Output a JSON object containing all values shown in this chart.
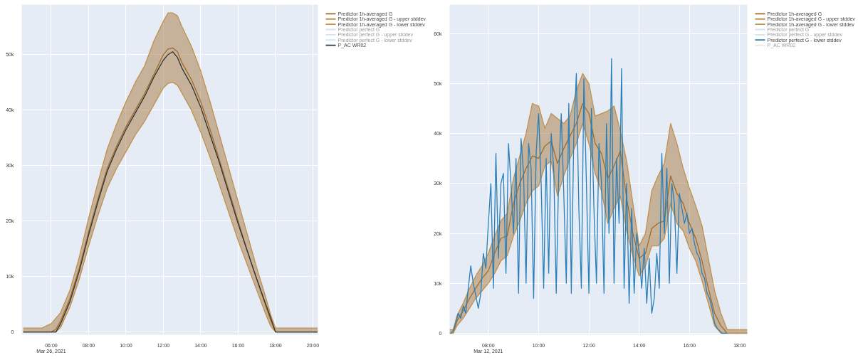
{
  "chart_data": [
    {
      "type": "line",
      "legend": "right",
      "grid": true,
      "ylim": [
        -500,
        59000
      ],
      "xlim": [
        4.42,
        20.27
      ],
      "yticks": [
        0,
        {
          "value": 10000,
          "label": "10k"
        },
        {
          "value": 20000,
          "label": "20k"
        },
        {
          "value": 30000,
          "label": "30k"
        },
        {
          "value": 40000,
          "label": "40k"
        },
        {
          "value": 50000,
          "label": "50k"
        }
      ],
      "xticks": [
        {
          "value": 6,
          "label": "06:00\nMar 26, 2021"
        },
        {
          "value": 8,
          "label": "08:00"
        },
        {
          "value": 10,
          "label": "10:00"
        },
        {
          "value": 12,
          "label": "12:00"
        },
        {
          "value": 14,
          "label": "14:00"
        },
        {
          "value": 16,
          "label": "16:00"
        },
        {
          "value": 18,
          "label": "18:00"
        },
        {
          "value": 20,
          "label": "20:00"
        }
      ],
      "x": [
        4.5,
        5,
        5.5,
        6,
        6.25,
        6.5,
        7,
        7.5,
        8,
        8.5,
        9,
        9.5,
        10,
        10.5,
        11,
        11.5,
        12,
        12.25,
        12.5,
        12.75,
        13,
        13.5,
        14,
        14.5,
        15,
        15.5,
        16,
        16.5,
        17,
        17.5,
        17.75,
        18,
        18.5,
        19,
        20,
        20.25
      ],
      "series": [
        {
          "name": "Predictor 1h-averaged G",
          "color": "#a06c2a",
          "values": [
            0,
            0,
            0,
            0,
            500,
            2000,
            6000,
            11500,
            18000,
            24000,
            29500,
            33500,
            37000,
            40000,
            43000,
            46500,
            50000,
            51000,
            51200,
            50500,
            48500,
            45500,
            41500,
            36500,
            31000,
            25500,
            20000,
            14500,
            9500,
            4500,
            2000,
            0,
            0,
            0,
            0,
            0
          ],
          "upper": [
            700,
            700,
            700,
            1500,
            2500,
            3500,
            7500,
            13500,
            20500,
            27000,
            33000,
            37500,
            41500,
            45000,
            48000,
            52500,
            56000,
            57500,
            57500,
            57000,
            55000,
            51500,
            47000,
            41500,
            35500,
            29500,
            23500,
            17500,
            11500,
            6000,
            3000,
            700,
            700,
            700,
            700,
            700
          ],
          "lower": [
            0,
            0,
            0,
            0,
            0,
            800,
            4500,
            9500,
            15500,
            21000,
            26000,
            29500,
            32500,
            35500,
            38000,
            41000,
            44000,
            44800,
            45000,
            44500,
            43000,
            40000,
            36000,
            31500,
            26500,
            21500,
            16500,
            12000,
            7500,
            3000,
            1000,
            0,
            0,
            0,
            0,
            0
          ]
        },
        {
          "name": "Predictor 1h-averaged G - upper stddev",
          "color": "#c0904c",
          "values": [
            700,
            700,
            700,
            1500,
            2500,
            3500,
            7500,
            13500,
            20500,
            27000,
            33000,
            37500,
            41500,
            45000,
            48000,
            52500,
            56000,
            57500,
            57500,
            57000,
            55000,
            51500,
            47000,
            41500,
            35500,
            29500,
            23500,
            17500,
            11500,
            6000,
            3000,
            700,
            700,
            700,
            700,
            700
          ]
        },
        {
          "name": "Predictor 1h-averaged G - lower stddev",
          "color": "#c0904c",
          "values": [
            0,
            0,
            0,
            0,
            0,
            800,
            4500,
            9500,
            15500,
            21000,
            26000,
            29500,
            32500,
            35500,
            38000,
            41000,
            44000,
            44800,
            45000,
            44500,
            43000,
            40000,
            36000,
            31500,
            26500,
            21500,
            16500,
            12000,
            7500,
            3000,
            1000,
            0,
            0,
            0,
            0,
            0
          ]
        },
        {
          "name": "Predictor perfect G",
          "color": "#9ec3e0",
          "values": [
            null,
            null,
            null,
            null,
            null,
            null,
            null,
            null,
            null,
            null,
            null,
            null,
            null,
            null,
            null,
            null,
            null,
            null,
            null,
            null,
            null,
            null,
            null,
            null,
            null,
            null,
            null,
            null,
            null,
            null,
            null,
            null,
            null,
            null,
            null,
            null
          ]
        },
        {
          "name": "Predictor perfect G - upper stddev",
          "color": "#9ec3e0",
          "values": [
            null,
            null,
            null,
            null,
            null,
            null,
            null,
            null,
            null,
            null,
            null,
            null,
            null,
            null,
            null,
            null,
            null,
            null,
            null,
            null,
            null,
            null,
            null,
            null,
            null,
            null,
            null,
            null,
            null,
            null,
            null,
            null,
            null,
            null,
            null,
            null
          ]
        },
        {
          "name": "Predictor perfect G - lower stddev",
          "color": "#9ec3e0",
          "values": [
            null,
            null,
            null,
            null,
            null,
            null,
            null,
            null,
            null,
            null,
            null,
            null,
            null,
            null,
            null,
            null,
            null,
            null,
            null,
            null,
            null,
            null,
            null,
            null,
            null,
            null,
            null,
            null,
            null,
            null,
            null,
            null,
            null,
            null,
            null,
            null
          ]
        },
        {
          "name": "P_AC WR02",
          "color": "#333333",
          "values": [
            0,
            0,
            0,
            0,
            0,
            1500,
            5500,
            11000,
            17500,
            23500,
            29000,
            33000,
            36500,
            39500,
            42500,
            46000,
            49000,
            50000,
            50500,
            49500,
            47500,
            44500,
            40500,
            35500,
            30500,
            25000,
            19500,
            14500,
            9500,
            4800,
            2500,
            0,
            0,
            0,
            0,
            0
          ]
        }
      ]
    },
    {
      "type": "line",
      "legend": "right",
      "grid": true,
      "ylim": [
        -300,
        65800
      ],
      "xlim": [
        6.46,
        18.3
      ],
      "yticks": [
        0,
        {
          "value": 10000,
          "label": "10k"
        },
        {
          "value": 20000,
          "label": "20k"
        },
        {
          "value": 30000,
          "label": "30k"
        },
        {
          "value": 40000,
          "label": "40k"
        },
        {
          "value": 50000,
          "label": "50k"
        },
        {
          "value": 60000,
          "label": "60k"
        }
      ],
      "xticks": [
        {
          "value": 8,
          "label": "08:00\nMar 12, 2021"
        },
        {
          "value": 10,
          "label": "10:00"
        },
        {
          "value": 12,
          "label": "12:00"
        },
        {
          "value": 14,
          "label": "14:00"
        },
        {
          "value": 16,
          "label": "16:00"
        },
        {
          "value": 18,
          "label": "18:00"
        }
      ],
      "x": [
        6.46,
        6.6,
        6.75,
        7.0,
        7.25,
        7.5,
        7.75,
        8.0,
        8.25,
        8.5,
        8.75,
        9.0,
        9.25,
        9.5,
        9.75,
        10.0,
        10.25,
        10.5,
        10.75,
        11.0,
        11.25,
        11.5,
        11.75,
        12.0,
        12.25,
        12.5,
        12.75,
        13.0,
        13.25,
        13.5,
        13.75,
        14.0,
        14.25,
        14.5,
        14.75,
        15.0,
        15.25,
        15.5,
        15.75,
        16.0,
        16.25,
        16.5,
        16.75,
        17.0,
        17.25,
        17.5,
        17.75,
        18.0,
        18.3
      ],
      "series": [
        {
          "name": "Predictor 1h-averaged G",
          "color": "#a06c2a",
          "values": [
            0,
            0,
            2500,
            4500,
            7000,
            9000,
            11000,
            12500,
            16000,
            19000,
            19500,
            26000,
            30000,
            33000,
            35500,
            35000,
            37500,
            38500,
            34000,
            37000,
            39500,
            42000,
            46000,
            44000,
            38000,
            36000,
            31000,
            33500,
            36500,
            27000,
            20000,
            15000,
            16000,
            21000,
            22000,
            22500,
            31500,
            28000,
            26000,
            22000,
            19000,
            14500,
            9000,
            4000,
            1500,
            0,
            0,
            0,
            0
          ],
          "upper": [
            700,
            700,
            3500,
            6000,
            9000,
            11500,
            13500,
            16000,
            19500,
            22500,
            24000,
            31000,
            35500,
            40000,
            46000,
            45500,
            41000,
            44000,
            43000,
            42000,
            43500,
            48500,
            52000,
            50000,
            43500,
            44000,
            44500,
            45500,
            40500,
            34500,
            26000,
            17500,
            20000,
            28500,
            31500,
            34000,
            42000,
            38000,
            33000,
            29000,
            25500,
            21500,
            15000,
            8500,
            4000,
            700,
            700,
            700,
            700
          ],
          "lower": [
            0,
            0,
            1500,
            3000,
            5000,
            7000,
            8500,
            10000,
            12000,
            14500,
            15500,
            19500,
            22500,
            26000,
            28500,
            29500,
            33500,
            34500,
            27500,
            31500,
            35000,
            38000,
            42000,
            38000,
            32000,
            28500,
            22000,
            25000,
            27500,
            20500,
            15500,
            11500,
            13500,
            17500,
            17500,
            19000,
            26000,
            22000,
            20500,
            17000,
            14500,
            10500,
            6000,
            1500,
            0,
            0,
            0,
            0,
            0
          ]
        },
        {
          "name": "Predictor 1h-averaged G - upper stddev",
          "color": "#c0904c",
          "values": [
            700,
            700,
            3500,
            6000,
            9000,
            11500,
            13500,
            16000,
            19500,
            22500,
            24000,
            31000,
            35500,
            40000,
            46000,
            45500,
            41000,
            44000,
            43000,
            42000,
            43500,
            48500,
            52000,
            50000,
            43500,
            44000,
            44500,
            45500,
            40500,
            34500,
            26000,
            17500,
            20000,
            28500,
            31500,
            34000,
            42000,
            38000,
            33000,
            29000,
            25500,
            21500,
            15000,
            8500,
            4000,
            700,
            700,
            700,
            700
          ]
        },
        {
          "name": "Predictor 1h-averaged G - lower stddev",
          "color": "#c0904c",
          "values": [
            0,
            0,
            1500,
            3000,
            5000,
            7000,
            8500,
            10000,
            12000,
            14500,
            15500,
            19500,
            22500,
            26000,
            28500,
            29500,
            33500,
            34500,
            27500,
            31500,
            35000,
            38000,
            42000,
            38000,
            32000,
            28500,
            22000,
            25000,
            27500,
            20500,
            15500,
            11500,
            13500,
            17500,
            17500,
            19000,
            26000,
            22000,
            20500,
            17000,
            14500,
            10500,
            6000,
            1500,
            0,
            0,
            0,
            0,
            0
          ]
        },
        {
          "name": "Predictor perfect G",
          "color": "#9ec3e0",
          "values": [
            null,
            null,
            null,
            null,
            null,
            null,
            null,
            null,
            null,
            null,
            null,
            null,
            null,
            null,
            null,
            null,
            null,
            null,
            null,
            null,
            null,
            null,
            null,
            null,
            null,
            null,
            null,
            null,
            null,
            null,
            null,
            null,
            null,
            null,
            null,
            null,
            null,
            null,
            null,
            null,
            null,
            null,
            null,
            null,
            null,
            null,
            null,
            null,
            null
          ]
        },
        {
          "name": "Predictor perfect G - upper stddev",
          "color": "#9ec3e0",
          "values": [
            null,
            null,
            null,
            null,
            null,
            null,
            null,
            null,
            null,
            null,
            null,
            null,
            null,
            null,
            null,
            null,
            null,
            null,
            null,
            null,
            null,
            null,
            null,
            null,
            null,
            null,
            null,
            null,
            null,
            null,
            null,
            null,
            null,
            null,
            null,
            null,
            null,
            null,
            null,
            null,
            null,
            null,
            null,
            null,
            null,
            null,
            null,
            null,
            null
          ]
        },
        {
          "name": "Predictor perfect G - lower stddev",
          "color": "#2a7fb8",
          "x": [
            6.5,
            6.6,
            6.7,
            6.8,
            6.9,
            7.0,
            7.1,
            7.2,
            7.3,
            7.4,
            7.5,
            7.6,
            7.7,
            7.8,
            7.9,
            8.0,
            8.1,
            8.2,
            8.3,
            8.4,
            8.5,
            8.6,
            8.7,
            8.8,
            8.9,
            9.0,
            9.1,
            9.2,
            9.3,
            9.4,
            9.5,
            9.6,
            9.7,
            9.8,
            9.9,
            10.0,
            10.1,
            10.2,
            10.3,
            10.4,
            10.5,
            10.6,
            10.7,
            10.8,
            10.9,
            11.0,
            11.1,
            11.2,
            11.3,
            11.4,
            11.5,
            11.6,
            11.7,
            11.8,
            11.9,
            12.0,
            12.1,
            12.2,
            12.3,
            12.4,
            12.5,
            12.6,
            12.7,
            12.8,
            12.9,
            13.0,
            13.1,
            13.2,
            13.3,
            13.4,
            13.5,
            13.6,
            13.7,
            13.8,
            13.9,
            14.0,
            14.1,
            14.2,
            14.3,
            14.4,
            14.5,
            14.6,
            14.7,
            14.8,
            14.9,
            15.0,
            15.1,
            15.2,
            15.3,
            15.4,
            15.5,
            15.6,
            15.7,
            15.8,
            15.9,
            16.0,
            16.1,
            16.2,
            16.3,
            16.4,
            16.5,
            16.6,
            16.7,
            16.8,
            16.9,
            17.0,
            17.1,
            17.2,
            17.3,
            17.5
          ],
          "values": [
            0,
            500,
            2000,
            4000,
            3000,
            5500,
            4000,
            9000,
            13500,
            10000,
            7500,
            5000,
            8000,
            16000,
            13000,
            22000,
            30000,
            9000,
            36000,
            15000,
            30000,
            32000,
            12000,
            38000,
            30000,
            20000,
            35000,
            8000,
            39000,
            32000,
            10000,
            38000,
            33000,
            7000,
            36000,
            44000,
            30000,
            9000,
            35000,
            12000,
            40000,
            33000,
            8000,
            32000,
            44000,
            28000,
            10000,
            46000,
            8000,
            40000,
            52000,
            25000,
            9000,
            51000,
            30000,
            8000,
            45000,
            25000,
            10000,
            38000,
            30000,
            8000,
            42000,
            20000,
            55000,
            10000,
            35000,
            22000,
            53000,
            9000,
            30000,
            6000,
            25000,
            8000,
            20000,
            16000,
            9000,
            17000,
            6000,
            15000,
            4000,
            7000,
            16000,
            9000,
            36000,
            20000,
            33000,
            10000,
            30000,
            26000,
            12000,
            28000,
            25000,
            22000,
            24000,
            20000,
            21000,
            18000,
            16000,
            15000,
            12000,
            11000,
            8000,
            7000,
            5000,
            2000,
            1000,
            500,
            0,
            0
          ]
        },
        {
          "name": "P_AC WR02",
          "color": "#e0c9a0",
          "values": [
            null,
            null,
            null,
            null,
            null,
            null,
            null,
            null,
            null,
            null,
            null,
            null,
            null,
            null,
            null,
            null,
            null,
            null,
            null,
            null,
            null,
            null,
            null,
            null,
            null,
            null,
            null,
            null,
            null,
            null,
            null,
            null,
            null,
            null,
            null,
            null,
            null,
            null,
            null,
            null,
            null,
            null,
            null,
            null,
            null,
            null,
            null,
            null,
            null
          ]
        }
      ]
    }
  ]
}
